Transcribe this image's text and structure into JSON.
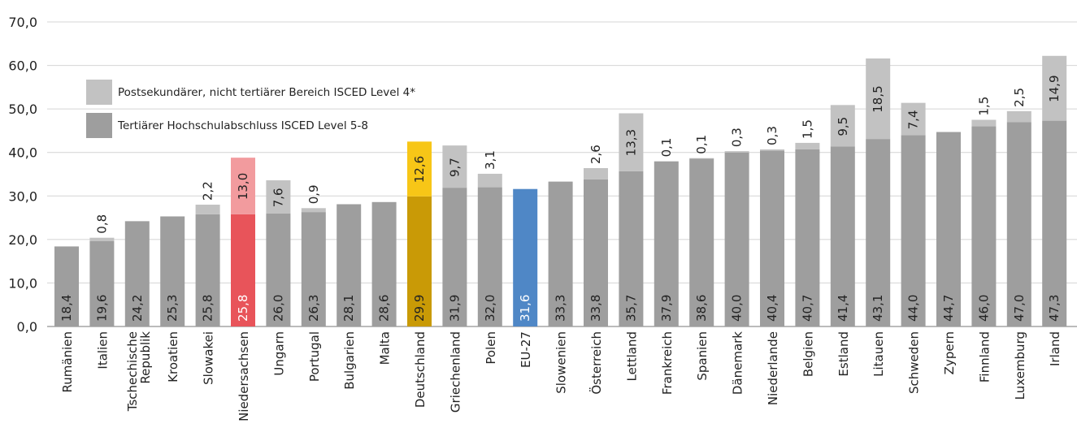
{
  "chart_data": {
    "type": "bar",
    "stacked": true,
    "ylim": [
      0,
      70
    ],
    "yticks": [
      "0,0",
      "10,0",
      "20,0",
      "30,0",
      "40,0",
      "50,0",
      "60,0",
      "70,0"
    ],
    "grid": true,
    "legend_position": "top-left",
    "categories": [
      "Rumänien",
      "Italien",
      "Tschechische Republik",
      "Kroatien",
      "Slowakei",
      "Niedersachsen",
      "Ungarn",
      "Portugal",
      "Bulgarien",
      "Malta",
      "Deutschland",
      "Griechenland",
      "Polen",
      "EU-27",
      "Slowenien",
      "Österreich",
      "Lettland",
      "Frankreich",
      "Spanien",
      "Dänemark",
      "Niederlande",
      "Belgien",
      "Estland",
      "Litauen",
      "Schweden",
      "Zypern",
      "Finnland",
      "Luxemburg",
      "Irland"
    ],
    "series": [
      {
        "name": "Tertiärer Hochschulabschluss ISCED Level 5-8",
        "values": [
          18.4,
          19.6,
          24.2,
          25.3,
          25.8,
          25.8,
          26.0,
          26.3,
          28.1,
          28.6,
          29.9,
          31.9,
          32.0,
          31.6,
          33.3,
          33.8,
          35.7,
          37.9,
          38.6,
          40.0,
          40.4,
          40.7,
          41.4,
          43.1,
          44.0,
          44.7,
          46.0,
          47.0,
          47.3
        ],
        "labels": [
          "18,4",
          "19,6",
          "24,2",
          "25,3",
          "25,8",
          "25,8",
          "26,0",
          "26,3",
          "28,1",
          "28,6",
          "29,9",
          "31,9",
          "32,0",
          "31,6",
          "33,3",
          "33,8",
          "35,7",
          "37,9",
          "38,6",
          "40,0",
          "40,4",
          "40,7",
          "41,4",
          "43,1",
          "44,0",
          "44,7",
          "46,0",
          "47,0",
          "47,3"
        ]
      },
      {
        "name": "Postsekundärer, nicht tertiärer Bereich ISCED Level 4*",
        "values": [
          null,
          0.8,
          null,
          null,
          2.2,
          13.0,
          7.6,
          0.9,
          null,
          null,
          12.6,
          9.7,
          3.1,
          null,
          null,
          2.6,
          13.3,
          0.1,
          0.1,
          0.3,
          0.3,
          1.5,
          9.5,
          18.5,
          7.4,
          null,
          1.5,
          2.5,
          14.9
        ],
        "labels": [
          null,
          "0,8",
          null,
          null,
          "2,2",
          "13,0",
          "7,6",
          "0,9",
          null,
          null,
          "12,6",
          "9,7",
          "3,1",
          null,
          null,
          "2,6",
          "13,3",
          "0,1",
          "0,1",
          "0,3",
          "0,3",
          "1,5",
          "9,5",
          "18,5",
          "7,4",
          null,
          "1,5",
          "2,5",
          "14,9"
        ]
      }
    ],
    "highlight_colors": {
      "default": {
        "base": "#9e9e9e",
        "top": "#c2c2c2"
      },
      "Niedersachsen": {
        "base": "#e8545a",
        "top": "#f29b9e"
      },
      "Deutschland": {
        "base": "#c99a06",
        "top": "#f7c617"
      },
      "EU-27": {
        "base": "#4f87c6",
        "top": "#4f87c6"
      }
    }
  }
}
